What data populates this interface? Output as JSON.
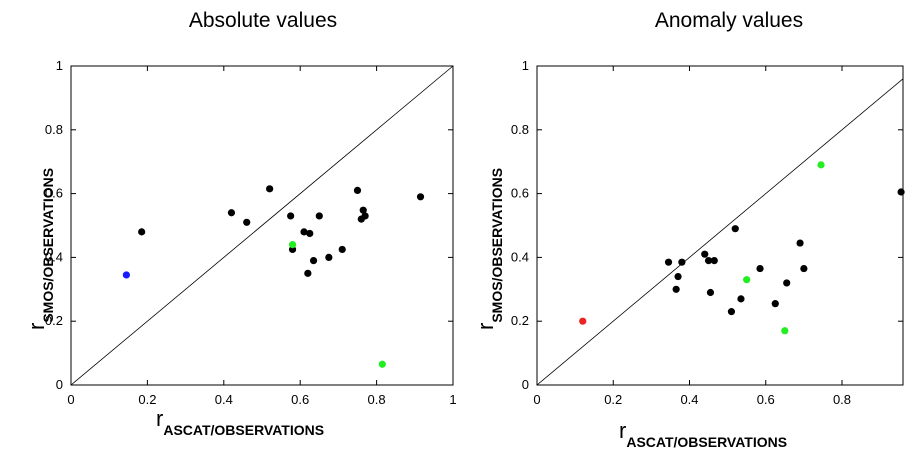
{
  "chart_data": [
    {
      "type": "scatter",
      "title": "Absolute values",
      "xlabel": {
        "main": "r",
        "sub": "ASCAT/OBSERVATIONS"
      },
      "ylabel": {
        "main": "r",
        "sub": "SMOS/OBSERVATIONS"
      },
      "xlim": [
        0,
        1
      ],
      "ylim": [
        0,
        1
      ],
      "xticks": [
        "0",
        "0.2",
        "0.4",
        "0.6",
        "0.8",
        "1"
      ],
      "yticks": [
        "0",
        "0.2",
        "0.4",
        "0.6",
        "0.8",
        "1"
      ],
      "grid": false,
      "reference_line": "1:1 diagonal",
      "points": [
        {
          "x": 0.145,
          "y": 0.345,
          "color": "#1a1aff"
        },
        {
          "x": 0.185,
          "y": 0.48,
          "color": "#000000"
        },
        {
          "x": 0.42,
          "y": 0.54,
          "color": "#000000"
        },
        {
          "x": 0.46,
          "y": 0.51,
          "color": "#000000"
        },
        {
          "x": 0.52,
          "y": 0.615,
          "color": "#000000"
        },
        {
          "x": 0.575,
          "y": 0.53,
          "color": "#000000"
        },
        {
          "x": 0.58,
          "y": 0.425,
          "color": "#000000"
        },
        {
          "x": 0.58,
          "y": 0.44,
          "color": "#22ee22"
        },
        {
          "x": 0.61,
          "y": 0.48,
          "color": "#000000"
        },
        {
          "x": 0.625,
          "y": 0.475,
          "color": "#000000"
        },
        {
          "x": 0.62,
          "y": 0.35,
          "color": "#000000"
        },
        {
          "x": 0.635,
          "y": 0.39,
          "color": "#000000"
        },
        {
          "x": 0.65,
          "y": 0.53,
          "color": "#000000"
        },
        {
          "x": 0.675,
          "y": 0.4,
          "color": "#000000"
        },
        {
          "x": 0.71,
          "y": 0.425,
          "color": "#000000"
        },
        {
          "x": 0.75,
          "y": 0.61,
          "color": "#000000"
        },
        {
          "x": 0.76,
          "y": 0.52,
          "color": "#000000"
        },
        {
          "x": 0.765,
          "y": 0.548,
          "color": "#000000"
        },
        {
          "x": 0.77,
          "y": 0.53,
          "color": "#000000"
        },
        {
          "x": 0.815,
          "y": 0.065,
          "color": "#22ee22"
        },
        {
          "x": 0.915,
          "y": 0.59,
          "color": "#000000"
        }
      ]
    },
    {
      "type": "scatter",
      "title": "Anomaly values",
      "xlabel": {
        "main": "r",
        "sub": "ASCAT/OBSERVATIONS"
      },
      "ylabel": {
        "main": "r",
        "sub": "SMOS/OBSERVATIONS"
      },
      "xlim": [
        0,
        0.96
      ],
      "ylim": [
        0,
        1
      ],
      "xticks": [
        "0",
        "0.2",
        "0.4",
        "0.6",
        "0.8"
      ],
      "yticks": [
        "0",
        "0.2",
        "0.4",
        "0.6",
        "0.8",
        "1"
      ],
      "grid": false,
      "reference_line": "1:1 diagonal",
      "points": [
        {
          "x": 0.12,
          "y": 0.2,
          "color": "#ee2222"
        },
        {
          "x": 0.345,
          "y": 0.385,
          "color": "#000000"
        },
        {
          "x": 0.365,
          "y": 0.3,
          "color": "#000000"
        },
        {
          "x": 0.37,
          "y": 0.34,
          "color": "#000000"
        },
        {
          "x": 0.38,
          "y": 0.385,
          "color": "#000000"
        },
        {
          "x": 0.44,
          "y": 0.41,
          "color": "#000000"
        },
        {
          "x": 0.45,
          "y": 0.39,
          "color": "#000000"
        },
        {
          "x": 0.455,
          "y": 0.29,
          "color": "#000000"
        },
        {
          "x": 0.465,
          "y": 0.39,
          "color": "#000000"
        },
        {
          "x": 0.51,
          "y": 0.23,
          "color": "#000000"
        },
        {
          "x": 0.52,
          "y": 0.49,
          "color": "#000000"
        },
        {
          "x": 0.535,
          "y": 0.27,
          "color": "#000000"
        },
        {
          "x": 0.55,
          "y": 0.33,
          "color": "#22ee22"
        },
        {
          "x": 0.585,
          "y": 0.365,
          "color": "#000000"
        },
        {
          "x": 0.625,
          "y": 0.255,
          "color": "#000000"
        },
        {
          "x": 0.65,
          "y": 0.17,
          "color": "#22ee22"
        },
        {
          "x": 0.655,
          "y": 0.32,
          "color": "#000000"
        },
        {
          "x": 0.69,
          "y": 0.445,
          "color": "#000000"
        },
        {
          "x": 0.7,
          "y": 0.365,
          "color": "#000000"
        },
        {
          "x": 0.745,
          "y": 0.69,
          "color": "#22ee22"
        },
        {
          "x": 0.955,
          "y": 0.605,
          "color": "#000000"
        }
      ]
    }
  ]
}
